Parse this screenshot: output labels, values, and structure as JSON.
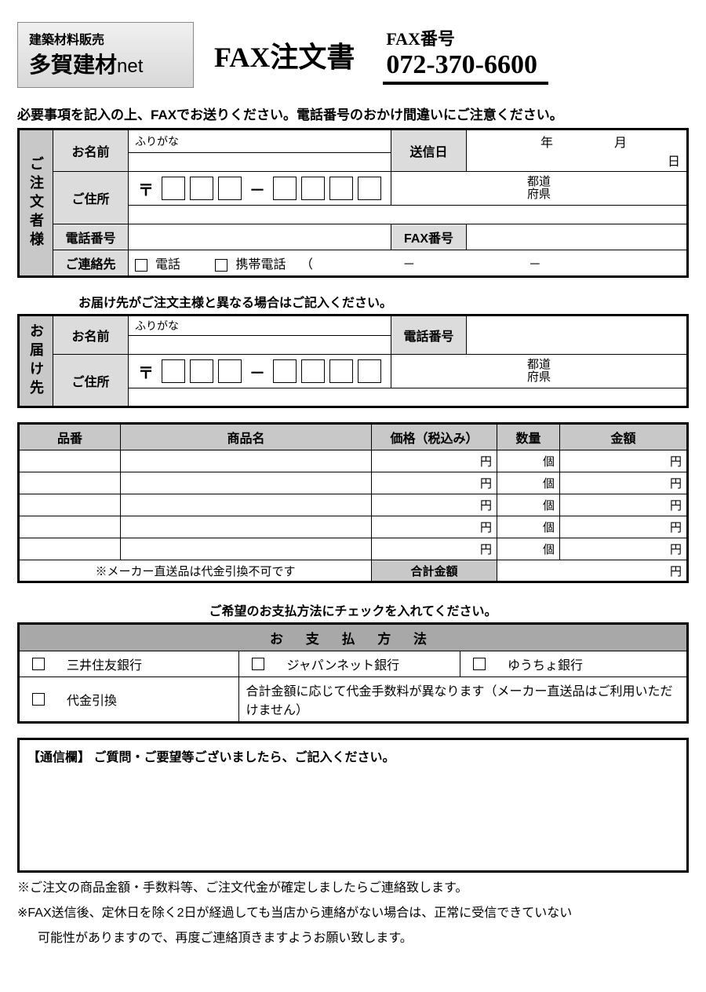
{
  "header": {
    "logo_small": "建築材料販売",
    "logo_main": "多賀建材",
    "logo_suffix": "net",
    "title": "FAX注文書",
    "fax_label": "FAX番号",
    "fax_number": "072-370-6600"
  },
  "instruction": "必要事項を記入の上、FAXでお送りください。電話番号のおかけ間違いにご注意ください。",
  "orderer": {
    "section_label": "ご注文者様",
    "name_label": "お名前",
    "furigana_label": "ふりがな",
    "send_date_label": "送信日",
    "date_year": "年",
    "date_month": "月",
    "date_day": "日",
    "address_label": "ご住所",
    "postal_symbol": "〒",
    "pref_label": "都道\n府県",
    "tel_label": "電話番号",
    "fax_label": "FAX番号",
    "contact_label": "ご連絡先",
    "contact_tel": "電話",
    "contact_mobile": "携帯電話",
    "paren_open": "（",
    "dash": "－"
  },
  "delivery_note": "お届け先がご注文主様と異なる場合はご記入ください。",
  "delivery": {
    "section_label": "お届け先",
    "name_label": "お名前",
    "furigana_label": "ふりがな",
    "tel_label": "電話番号",
    "address_label": "ご住所",
    "postal_symbol": "〒",
    "pref_label": "都道\n府県"
  },
  "items": {
    "cols": {
      "sku": "品番",
      "name": "商品名",
      "price": "価格（税込み）",
      "qty": "数量",
      "amount": "金額"
    },
    "unit_yen": "円",
    "unit_qty": "個",
    "row_count": 5,
    "footnote": "※メーカー直送品は代金引換不可です",
    "total_label": "合計金額"
  },
  "payment": {
    "caption": "ご希望のお支払方法にチェックを入れてください。",
    "header": "お 支 払 方 法",
    "opts": [
      "三井住友銀行",
      "ジャパンネット銀行",
      "ゆうちょ銀行",
      "代金引換"
    ],
    "cod_note": "合計金額に応じて代金手数料が異なります（メーカー直送品はご利用いただけません）"
  },
  "memo": {
    "title": "【通信欄】 ご質問・ご要望等ございましたら、ご記入ください。"
  },
  "notes": [
    "※ご注文の商品金額・手数料等、ご注文代金が確定しましたらご連絡致します。",
    "※FAX送信後、定休日を除く2日が経過しても当店から連絡がない場合は、正常に受信できていない",
    "可能性がありますので、再度ご連絡頂きますようお願い致します。"
  ],
  "style": {
    "border_color": "#000000",
    "header_bg": "#c8c8c8",
    "label_bg": "#dcdcdc",
    "pay_header_bg": "#a8a8a8",
    "page_bg": "#ffffff"
  }
}
